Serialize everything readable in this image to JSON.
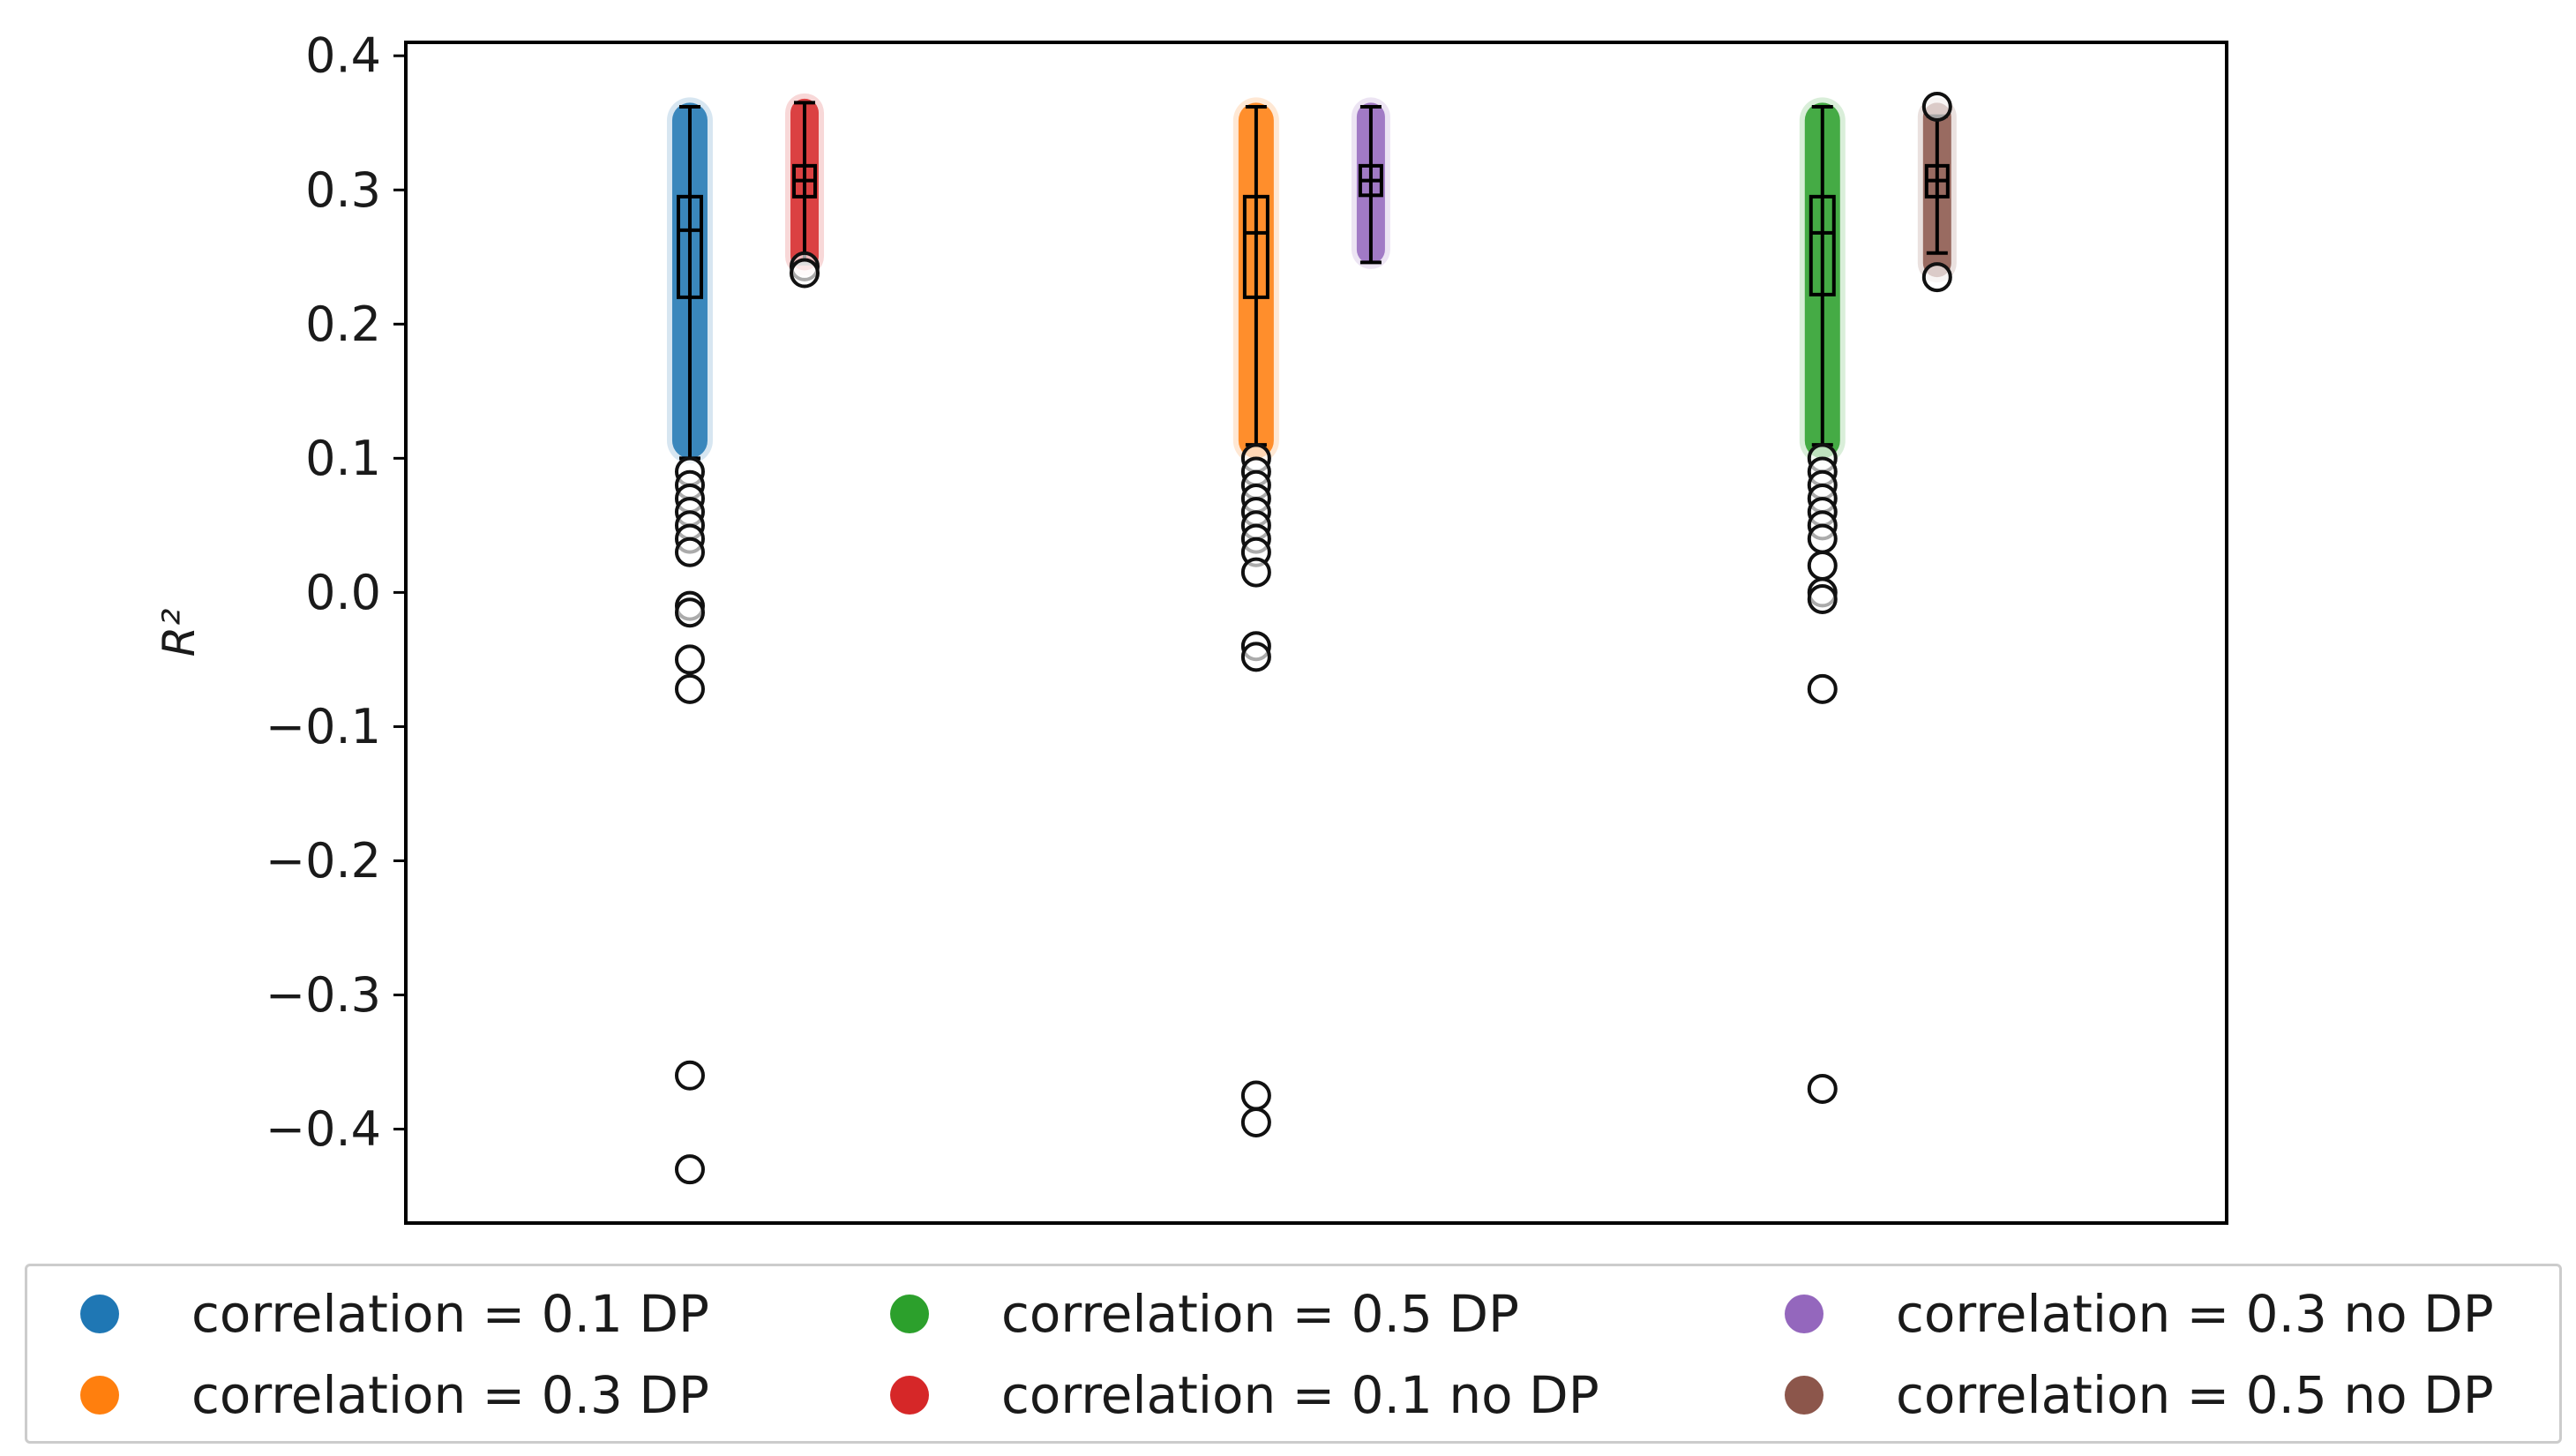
{
  "chart_data": {
    "type": "box",
    "ylabel": "R²",
    "ylim": [
      -0.47,
      0.41
    ],
    "yticks": [
      0.4,
      0.3,
      0.2,
      0.1,
      0.0,
      -0.1,
      -0.2,
      -0.3,
      -0.4
    ],
    "ytick_labels": [
      "0.4",
      "0.3",
      "0.2",
      "0.1",
      "0.0",
      "−0.1",
      "−0.2",
      "−0.3",
      "−0.4"
    ],
    "series": [
      {
        "name": "correlation = 0.1 DP",
        "color": "#1f77b4",
        "group": 1,
        "spread_min": 0.1,
        "spread_max": 0.365,
        "whisker_low": 0.1,
        "q1": 0.22,
        "median": 0.27,
        "q3": 0.295,
        "whisker_high": 0.362,
        "outliers": [
          0.09,
          0.08,
          0.07,
          0.06,
          0.05,
          0.04,
          0.03,
          -0.01,
          -0.015,
          -0.05,
          -0.072,
          -0.36,
          -0.43
        ]
      },
      {
        "name": "correlation = 0.1 no DP",
        "color": "#d62728",
        "group": 1,
        "spread_min": 0.24,
        "spread_max": 0.368,
        "whisker_low": 0.245,
        "q1": 0.295,
        "median": 0.307,
        "q3": 0.318,
        "whisker_high": 0.365,
        "outliers": [
          0.243,
          0.238
        ]
      },
      {
        "name": "correlation = 0.3 DP",
        "color": "#ff7f0e",
        "group": 2,
        "spread_min": 0.1,
        "spread_max": 0.365,
        "whisker_low": 0.11,
        "q1": 0.22,
        "median": 0.268,
        "q3": 0.295,
        "whisker_high": 0.362,
        "outliers": [
          0.1,
          0.09,
          0.08,
          0.07,
          0.06,
          0.05,
          0.04,
          0.03,
          0.015,
          -0.04,
          -0.048,
          -0.375,
          -0.395
        ]
      },
      {
        "name": "correlation = 0.3 no DP",
        "color": "#9467bd",
        "group": 2,
        "spread_min": 0.245,
        "spread_max": 0.365,
        "whisker_low": 0.246,
        "q1": 0.296,
        "median": 0.307,
        "q3": 0.318,
        "whisker_high": 0.362,
        "outliers": []
      },
      {
        "name": "correlation = 0.5 DP",
        "color": "#2ca02c",
        "group": 3,
        "spread_min": 0.1,
        "spread_max": 0.365,
        "whisker_low": 0.11,
        "q1": 0.222,
        "median": 0.268,
        "q3": 0.295,
        "whisker_high": 0.362,
        "outliers": [
          0.1,
          0.09,
          0.08,
          0.07,
          0.06,
          0.05,
          0.04,
          0.02,
          0.0,
          -0.005,
          -0.072,
          -0.37
        ]
      },
      {
        "name": "correlation = 0.5 no DP",
        "color": "#8c564b",
        "group": 3,
        "spread_min": 0.235,
        "spread_max": 0.365,
        "whisker_low": 0.253,
        "q1": 0.295,
        "median": 0.307,
        "q3": 0.318,
        "whisker_high": 0.355,
        "outliers": [
          0.362,
          0.235
        ]
      }
    ],
    "legend": {
      "placement": "bottom",
      "columns": 3,
      "entries": [
        {
          "label": "correlation = 0.1 DP",
          "color": "#1f77b4"
        },
        {
          "label": "correlation = 0.3 DP",
          "color": "#ff7f0e"
        },
        {
          "label": "correlation = 0.5 DP",
          "color": "#2ca02c"
        },
        {
          "label": "correlation = 0.1 no DP",
          "color": "#d62728"
        },
        {
          "label": "correlation = 0.3 no DP",
          "color": "#9467bd"
        },
        {
          "label": "correlation = 0.5 no DP",
          "color": "#8c564b"
        }
      ]
    }
  }
}
